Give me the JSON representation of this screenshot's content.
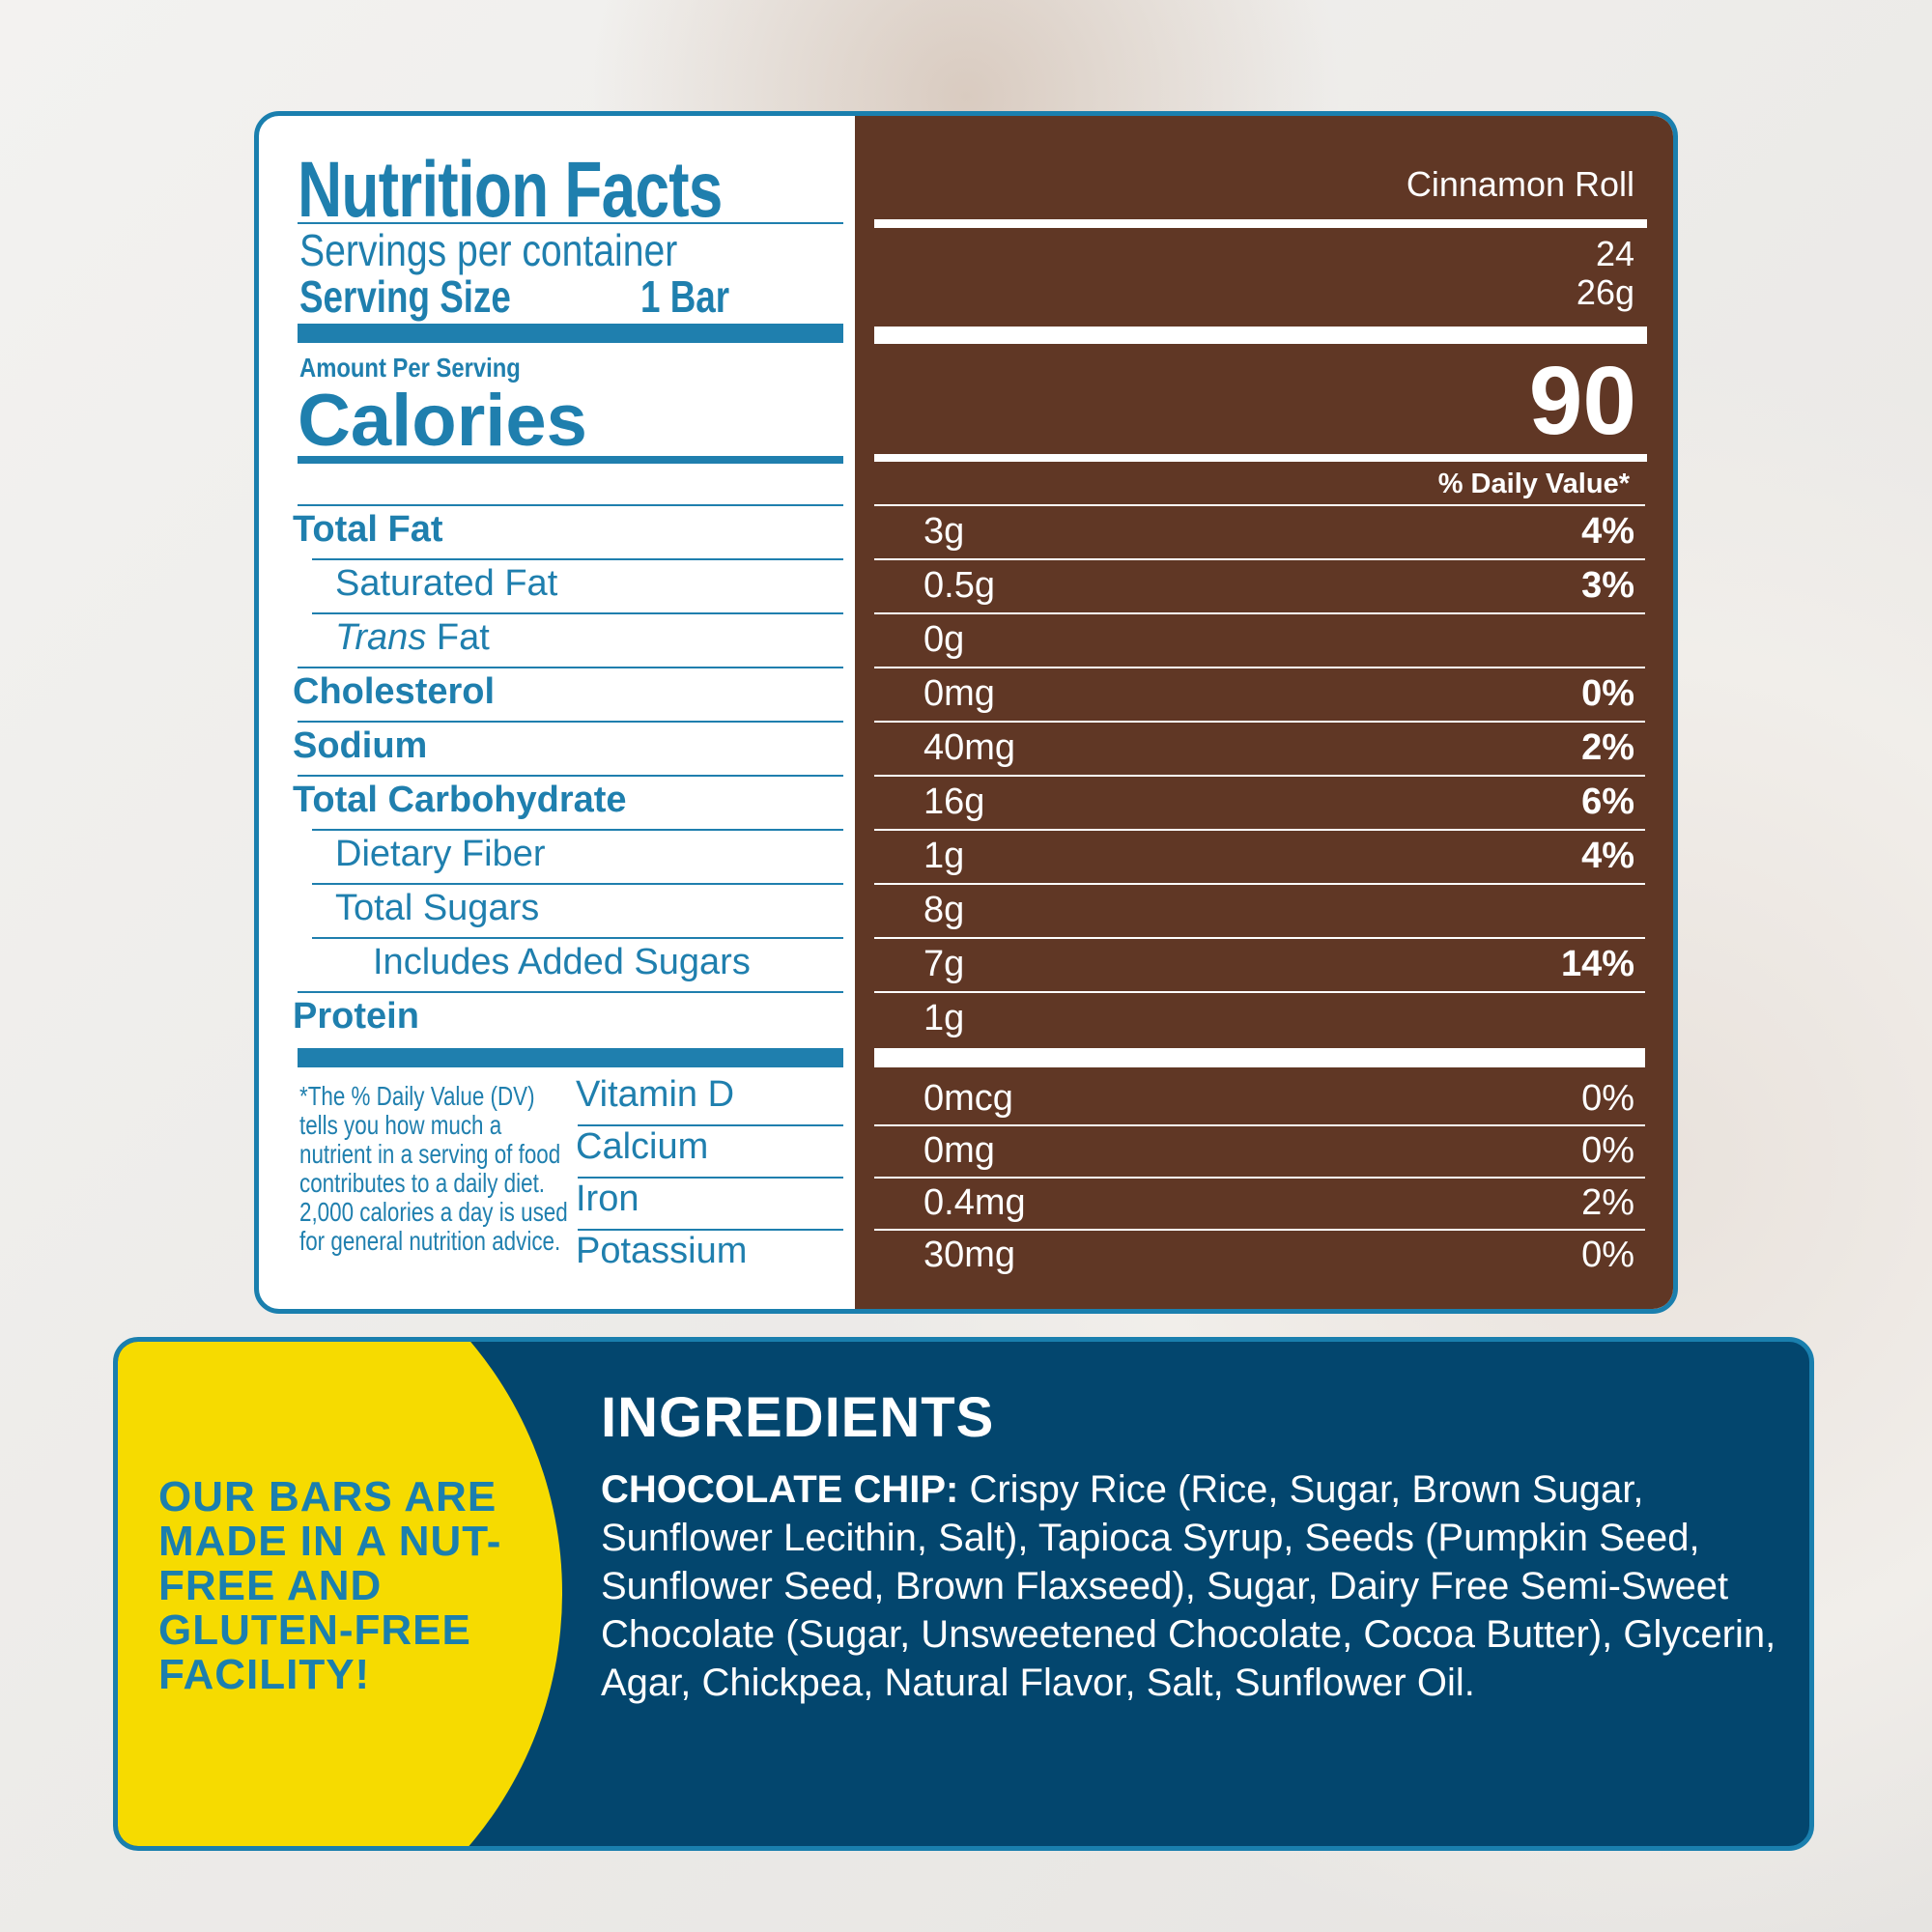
{
  "colors": {
    "label_blue": "#1f7fae",
    "panel_brown": "#603725",
    "ingredients_navy": "#03466e",
    "claim_yellow": "#f6db00"
  },
  "label": {
    "title": "Nutrition Facts",
    "servings_label": "Servings per container",
    "serving_size_label": "Serving Size",
    "serving_size_unit": "1 Bar",
    "amount_per_serving": "Amount Per Serving",
    "calories_label": "Calories",
    "flavor": "Cinnamon Roll",
    "servings_value": "24",
    "serving_size_value": "26g",
    "calories_value": "90",
    "dv_header": "% Daily Value*",
    "nutrients": [
      {
        "name": "Total Fat",
        "amount": "3g",
        "dv": "4%",
        "bold": true,
        "indent": 0
      },
      {
        "name": "Saturated Fat",
        "amount": "0.5g",
        "dv": "3%",
        "bold": false,
        "indent": 1
      },
      {
        "name": "Trans Fat",
        "name_italic": "Trans",
        "name_rest": " Fat",
        "amount": "0g",
        "dv": "",
        "bold": false,
        "indent": 1
      },
      {
        "name": "Cholesterol",
        "amount": "0mg",
        "dv": "0%",
        "bold": true,
        "indent": 0
      },
      {
        "name": "Sodium",
        "amount": "40mg",
        "dv": "2%",
        "bold": true,
        "indent": 0
      },
      {
        "name": "Total Carbohydrate",
        "amount": "16g",
        "dv": "6%",
        "bold": true,
        "indent": 0
      },
      {
        "name": "Dietary Fiber",
        "amount": "1g",
        "dv": "4%",
        "bold": false,
        "indent": 1
      },
      {
        "name": "Total Sugars",
        "amount": "8g",
        "dv": "",
        "bold": false,
        "indent": 1
      },
      {
        "name": "Includes Added Sugars",
        "amount": "7g",
        "dv": "14%",
        "bold": false,
        "indent": 2
      },
      {
        "name": "Protein",
        "amount": "1g",
        "dv": "",
        "bold": true,
        "indent": 0
      }
    ],
    "vitamins": [
      {
        "name": "Vitamin D",
        "amount": "0mcg",
        "dv": "0%"
      },
      {
        "name": "Calcium",
        "amount": "0mg",
        "dv": "0%"
      },
      {
        "name": "Iron",
        "amount": "0.4mg",
        "dv": "2%"
      },
      {
        "name": "Potassium",
        "amount": "30mg",
        "dv": "0%"
      }
    ],
    "footnote": "*The % Daily Value (DV) tells you how much a nutrient in a serving of food contributes to a daily diet. 2,000 calories a day is used for general nutrition advice."
  },
  "claim": "OUR BARS ARE MADE IN A NUT-FREE AND GLUTEN-FREE FACILITY!",
  "ingredients": {
    "heading": "INGREDIENTS",
    "flavor_label": "CHOCOLATE CHIP:",
    "text": " Crispy Rice (Rice, Sugar, Brown Sugar, Sunflower Lecithin, Salt), Tapioca Syrup, Seeds (Pumpkin Seed, Sunflower Seed, Brown Flaxseed), Sugar, Dairy Free Semi-Sweet Chocolate (Sugar, Unsweetened Chocolate, Cocoa Butter), Glycerin, Agar, Chickpea, Natural Flavor, Salt, Sunflower Oil."
  }
}
